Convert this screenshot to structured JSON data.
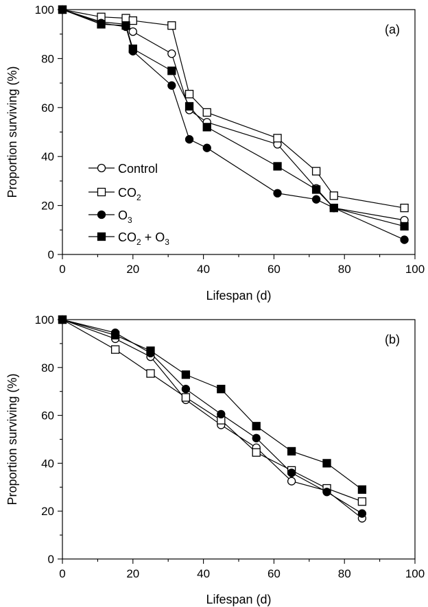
{
  "chart_data": [
    {
      "type": "line",
      "panel_label": "(a)",
      "xlabel": "Lifespan (d)",
      "ylabel": "Proportion surviving (%)",
      "xlim": [
        0,
        100
      ],
      "ylim": [
        0,
        100
      ],
      "xticks": [
        0,
        20,
        40,
        60,
        80,
        100
      ],
      "yticks": [
        0,
        20,
        40,
        60,
        80,
        100
      ],
      "grid": false,
      "legend": {
        "placement": "left-middle",
        "entries": [
          {
            "series": "control",
            "text": "Control"
          },
          {
            "series": "co2",
            "text": "CO",
            "sub": "2"
          },
          {
            "series": "o3",
            "text": "O",
            "sub": "3"
          },
          {
            "series": "co2o3",
            "text": "CO",
            "sub": "2",
            "text2": " + O",
            "sub2": "3"
          }
        ]
      },
      "series": [
        {
          "key": "control",
          "marker": "circle-open",
          "x": [
            0,
            11,
            18,
            20,
            31,
            36,
            41,
            61,
            72,
            77,
            97
          ],
          "y": [
            100,
            95,
            94,
            91,
            82,
            59,
            54,
            45,
            27,
            19,
            14
          ]
        },
        {
          "key": "co2",
          "marker": "square-open",
          "x": [
            0,
            11,
            18,
            20,
            31,
            36,
            41,
            61,
            72,
            77,
            97
          ],
          "y": [
            100,
            97,
            96.5,
            95.5,
            93.5,
            65.5,
            58,
            47.5,
            34,
            24,
            19
          ]
        },
        {
          "key": "o3",
          "marker": "circle-filled",
          "x": [
            0,
            11,
            18,
            20,
            31,
            36,
            41,
            61,
            72,
            77,
            97
          ],
          "y": [
            100,
            94.5,
            93,
            83,
            69,
            47,
            43.5,
            25,
            22.5,
            19,
            6
          ]
        },
        {
          "key": "co2o3",
          "marker": "square-filled",
          "x": [
            0,
            11,
            18,
            20,
            31,
            36,
            41,
            61,
            72,
            77,
            97
          ],
          "y": [
            100,
            94,
            93.5,
            84,
            75,
            60.5,
            52,
            36,
            26.5,
            19,
            11.5
          ]
        }
      ]
    },
    {
      "type": "line",
      "panel_label": "(b)",
      "xlabel": "Lifespan (d)",
      "ylabel": "Proportion surviving (%)",
      "xlim": [
        0,
        100
      ],
      "ylim": [
        0,
        100
      ],
      "xticks": [
        0,
        20,
        40,
        60,
        80,
        100
      ],
      "yticks": [
        0,
        20,
        40,
        60,
        80,
        100
      ],
      "grid": false,
      "series": [
        {
          "key": "control",
          "marker": "circle-open",
          "x": [
            0,
            15,
            25,
            35,
            45,
            55,
            65,
            75,
            85
          ],
          "y": [
            100,
            92,
            84.5,
            66.5,
            56,
            46.5,
            32.5,
            28.5,
            17
          ]
        },
        {
          "key": "co2",
          "marker": "square-open",
          "x": [
            0,
            15,
            25,
            35,
            45,
            55,
            65,
            75,
            85
          ],
          "y": [
            100,
            87.5,
            77.5,
            67.5,
            58,
            44.5,
            37,
            29.5,
            24
          ]
        },
        {
          "key": "o3",
          "marker": "circle-filled",
          "x": [
            0,
            15,
            25,
            35,
            45,
            55,
            65,
            75,
            85
          ],
          "y": [
            100,
            94.5,
            86,
            71,
            60.5,
            50.5,
            36,
            28,
            19
          ]
        },
        {
          "key": "co2o3",
          "marker": "square-filled",
          "x": [
            0,
            15,
            25,
            35,
            45,
            55,
            65,
            75,
            85
          ],
          "y": [
            100,
            93.5,
            87,
            77,
            71,
            55.5,
            45,
            40,
            29
          ]
        }
      ]
    }
  ]
}
